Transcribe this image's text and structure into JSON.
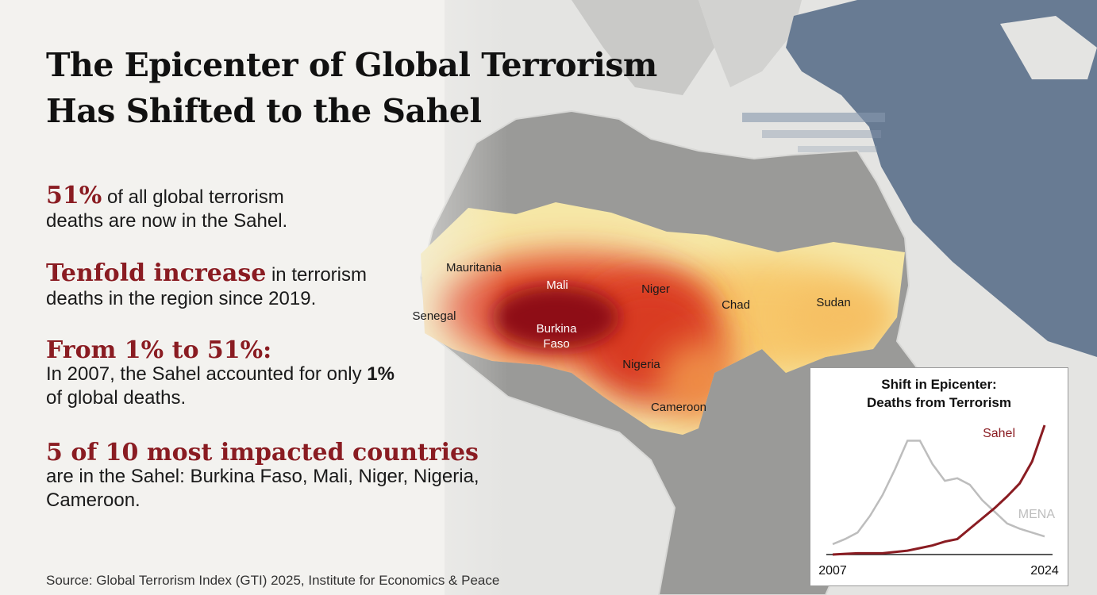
{
  "header": {
    "title_line1": "The Epicenter of Global Terrorism",
    "title_line2": "Has Shifted to the Sahel"
  },
  "stats": [
    {
      "highlight": "51%",
      "text": [
        "of all global terrorism deaths are now in the Sahel."
      ]
    },
    {
      "highlight": "Tenfold increase",
      "text": [
        "in terrorism deaths in the region since 2019."
      ]
    },
    {
      "highlight": "From 1% to 51%:",
      "text": [
        "In 2007, the Sahel accounted for only",
        "1%",
        "of global deaths."
      ]
    },
    {
      "highlight": "5 of 10 most impacted countries",
      "text": [
        "are in the Sahel: Burkina Faso, Mali, Niger, Nigeria, Cameroon."
      ]
    }
  ],
  "map": {
    "labels": [
      "Mauritania",
      "Mali",
      "Niger",
      "Senegal",
      "Burkina",
      "Faso",
      "Chad",
      "Sudan",
      "Nigeria",
      "Cameroon"
    ]
  },
  "source": "Source: Global Terrorism Index (GTI) 2025, Institute for Economics & Peace",
  "chart_data": {
    "type": "line",
    "title_line1": "Shift in Epicenter:",
    "title_line2": "Deaths from Terrorism",
    "categories": [
      "2007",
      null,
      null,
      null,
      null,
      null,
      null,
      null,
      null,
      null,
      null,
      null,
      null,
      null,
      null,
      null,
      null,
      "2024"
    ],
    "series": [
      {
        "name": "Sahel",
        "color": "#8a1c22",
        "values": [
          0,
          0.5,
          1,
          1,
          1,
          2,
          3,
          5,
          7,
          10,
          12,
          20,
          28,
          36,
          45,
          55,
          72,
          100
        ]
      },
      {
        "name": "MENA",
        "color": "#bdbdbd",
        "values": [
          8,
          12,
          17,
          30,
          46,
          66,
          88,
          88,
          70,
          57,
          59,
          54,
          42,
          33,
          24,
          20,
          17,
          14
        ]
      }
    ],
    "ylim": [
      0,
      100
    ]
  }
}
